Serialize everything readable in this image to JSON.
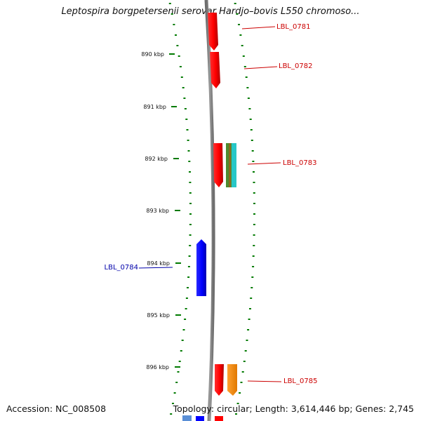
{
  "header": {
    "title": "Leptospira borgpetersenii serovar Hardjo–bovis L550 chromoso..."
  },
  "footer": {
    "accession": "Accession: NC_008508",
    "topology": "Topology: circular; Length: 3,614,446 bp; Genes: 2,745"
  },
  "axis": {
    "ticks": [
      "890 kbp",
      "891 kbp",
      "892 kbp",
      "893 kbp",
      "894 kbp",
      "895 kbp",
      "896 kbp"
    ]
  },
  "genes": [
    {
      "label": "LBL_0781",
      "strand": "forward",
      "color": "#cc0000"
    },
    {
      "label": "LBL_0782",
      "strand": "forward",
      "color": "#cc0000"
    },
    {
      "label": "LBL_0783",
      "strand": "forward",
      "color": "#cc0000"
    },
    {
      "label": "LBL_0784",
      "strand": "reverse",
      "color": "#0000aa"
    },
    {
      "label": "LBL_0785",
      "strand": "forward",
      "color": "#cc0000"
    }
  ],
  "colors": {
    "tick_green": "#007a00",
    "backbone": "#8a8a8a",
    "forward_gene": "#ff0000",
    "reverse_gene": "#0000ff",
    "cog_green": "#4f8a2f",
    "cog_teal": "#27c7c7",
    "cog_orange": "#ff8c00"
  }
}
